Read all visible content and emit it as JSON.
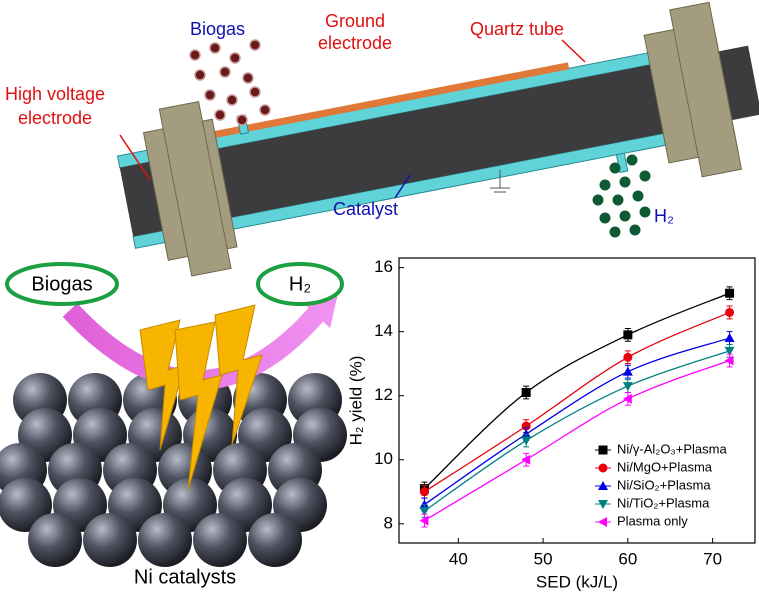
{
  "diagram": {
    "reactor": {
      "biogas": "Biogas",
      "ground_electrode": [
        "Ground",
        "electrode"
      ],
      "quartz_tube": "Quartz tube",
      "high_voltage_electrode": [
        "High voltage",
        "electrode"
      ],
      "catalyst": "Catalyst",
      "h2": "H₂"
    },
    "mechanism": {
      "input": "Biogas",
      "output": "H₂",
      "catalysts": "Ni catalysts"
    }
  },
  "chart_data": {
    "type": "line",
    "x_label": "SED (kJ/L)",
    "y_label": "H₂ yield (%)",
    "x": [
      36,
      48,
      60,
      72
    ],
    "xlim": [
      33,
      75
    ],
    "xticks": [
      40,
      50,
      60,
      70
    ],
    "ylim": [
      7.4,
      16.3
    ],
    "yticks": [
      8,
      10,
      12,
      14,
      16
    ],
    "legend": "lower right",
    "series": [
      {
        "name": "Ni/γ-Al₂O₃+Plasma",
        "color": "#000000",
        "marker": "square",
        "values": [
          9.1,
          12.1,
          13.9,
          15.2
        ],
        "errors": [
          0.2,
          0.2,
          0.2,
          0.2
        ]
      },
      {
        "name": "Ni/MgO+Plasma",
        "color": "#e8000b",
        "marker": "circle",
        "values": [
          9.0,
          11.05,
          13.2,
          14.6
        ],
        "errors": [
          0.2,
          0.2,
          0.2,
          0.2
        ]
      },
      {
        "name": "Ni/SiO₂+Plasma",
        "color": "#0000e8",
        "marker": "triangle-up",
        "values": [
          8.6,
          10.8,
          12.75,
          13.8
        ],
        "errors": [
          0.2,
          0.2,
          0.2,
          0.2
        ]
      },
      {
        "name": "Ni/TiO₂+Plasma",
        "color": "#008080",
        "marker": "triangle-down",
        "values": [
          8.4,
          10.6,
          12.3,
          13.4
        ],
        "errors": [
          0.2,
          0.2,
          0.2,
          0.2
        ]
      },
      {
        "name": "Plasma only",
        "color": "#ff00ff",
        "marker": "triangle-left",
        "values": [
          8.1,
          10.0,
          11.9,
          13.1
        ],
        "errors": [
          0.2,
          0.2,
          0.2,
          0.2
        ]
      }
    ]
  }
}
